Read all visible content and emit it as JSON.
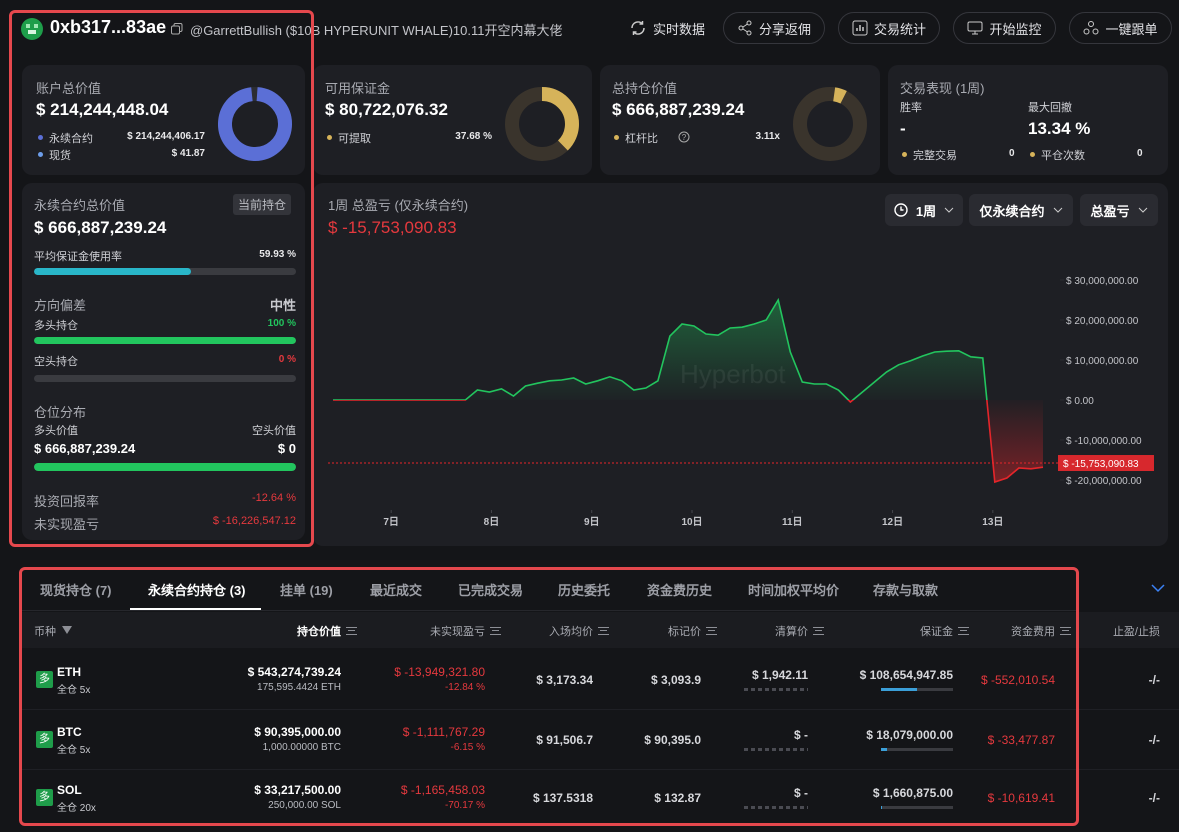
{
  "header": {
    "address": "0xb317...83ae",
    "handle": "@GarrettBullish ($10B HYPERUNIT WHALE)10.11开空内幕大佬",
    "buttons": [
      "实时数据",
      "分享返佣",
      "交易统计",
      "开始监控",
      "一键跟单"
    ]
  },
  "cards": {
    "account": {
      "title": "账户总价值",
      "value": "$ 214,244,448.04",
      "items": [
        {
          "label": "永续合约",
          "value": "$ 214,244,406.17"
        },
        {
          "label": "现货",
          "value": "$ 41.87"
        }
      ]
    },
    "margin": {
      "title": "可用保证金",
      "value": "$ 80,722,076.32",
      "items": [
        {
          "label": "可提取",
          "value": "37.68 %"
        }
      ]
    },
    "position": {
      "title": "总持仓价值",
      "value": "$ 666,887,239.24",
      "items": [
        {
          "label": "杠杆比",
          "value": "3.11x"
        }
      ]
    },
    "performance": {
      "title": "交易表现 (1周)",
      "win_rate_label": "胜率",
      "win_rate": "-",
      "drawdown_label": "最大回撤",
      "drawdown": "13.34 %",
      "items": [
        {
          "label": "完整交易",
          "value": "0"
        },
        {
          "label": "平仓次数",
          "value": "0"
        }
      ]
    }
  },
  "perp_panel": {
    "title": "永续合约总价值",
    "tag": "当前持仓",
    "value": "$ 666,887,239.24",
    "margin_usage_label": "平均保证金使用率",
    "margin_usage": "59.93 %",
    "bias_label": "方向偏差",
    "bias": "中性",
    "long_label": "多头持仓",
    "long_pct": "100 %",
    "short_label": "空头持仓",
    "short_pct": "0 %",
    "distribution_label": "仓位分布",
    "long_value_label": "多头价值",
    "short_value_label": "空头价值",
    "long_value": "$ 666,887,239.24",
    "short_value": "$ 0",
    "roi_label": "投资回报率",
    "roi": "-12.64 %",
    "upnl_label": "未实现盈亏",
    "upnl": "$ -16,226,547.12"
  },
  "chart_data": {
    "type": "area",
    "title": "1周 总盈亏 (仅永续合约)",
    "filters": [
      "1周",
      "仅永续合约",
      "总盈亏"
    ],
    "watermark": "Hyperbot",
    "current": {
      "value": -15753090.83,
      "label": "$ -15,753,090.83"
    },
    "x": [
      6.42,
      6.54,
      6.66,
      6.78,
      6.9,
      7.02,
      7.14,
      7.26,
      7.38,
      7.5,
      7.62,
      7.74,
      7.86,
      7.98,
      8.1,
      8.22,
      8.34,
      8.46,
      8.58,
      8.7,
      8.82,
      8.94,
      9.06,
      9.18,
      9.3,
      9.42,
      9.54,
      9.66,
      9.78,
      9.9,
      10.02,
      10.14,
      10.26,
      10.38,
      10.5,
      10.62,
      10.74,
      10.86,
      10.98,
      11.1,
      11.22,
      11.34,
      11.46,
      11.58,
      11.7,
      11.82,
      11.94,
      12.06,
      12.18,
      12.3,
      12.42,
      12.54,
      12.66,
      12.78,
      12.9,
      13.02,
      13.14,
      13.26,
      13.38,
      13.5
    ],
    "values": [
      0,
      0,
      0,
      0,
      0,
      0,
      0,
      0,
      0,
      0,
      0,
      0,
      2500000,
      2000000,
      2800000,
      1000000,
      3500000,
      4200000,
      4800000,
      5000000,
      5500000,
      4000000,
      4800000,
      5800000,
      4800000,
      2500000,
      3000000,
      4800000,
      16000000,
      19000000,
      18500000,
      16500000,
      16200000,
      18000000,
      18200000,
      19000000,
      20000000,
      25000000,
      12000000,
      4500000,
      4000000,
      4000000,
      2500000,
      -500000,
      2000000,
      4500000,
      7000000,
      8800000,
      9800000,
      11000000,
      12000000,
      12200000,
      12300000,
      10800000,
      10500000,
      -20500000,
      -19500000,
      -17000000,
      -17200000,
      -16800000
    ],
    "xlim": [
      6.42,
      13.57
    ],
    "xticks": [
      {
        "value": 7,
        "label": "7日"
      },
      {
        "value": 8,
        "label": "8日"
      },
      {
        "value": 9,
        "label": "9日"
      },
      {
        "value": 10,
        "label": "10日"
      },
      {
        "value": 11,
        "label": "11日"
      },
      {
        "value": 12,
        "label": "12日"
      },
      {
        "value": 13,
        "label": "13日"
      }
    ],
    "ylim": [
      -27500000,
      35000000
    ],
    "yticks": [
      {
        "value": 30000000,
        "label": "$ 30,000,000.00"
      },
      {
        "value": 20000000,
        "label": "$ 20,000,000.00"
      },
      {
        "value": 10000000,
        "label": "$ 10,000,000.00"
      },
      {
        "value": 0,
        "label": "$ 0.00"
      },
      {
        "value": -10000000,
        "label": "$ -10,000,000.00"
      },
      {
        "value": -20000000,
        "label": "$ -20,000,000.00"
      }
    ],
    "color_up": "#22c55e",
    "color_down": "#e5252a"
  },
  "positions": {
    "tabs": [
      "现货持仓 (7)",
      "永续合约持仓 (3)",
      "挂单 (19)",
      "最近成交",
      "已完成交易",
      "历史委托",
      "资金费历史",
      "时间加权平均价",
      "存款与取款"
    ],
    "active_tab": 1,
    "columns": [
      "币种",
      "持仓价值",
      "未实现盈亏",
      "入场均价",
      "标记价",
      "清算价",
      "保证金",
      "资金费用",
      "止盈/止损"
    ],
    "rows": [
      {
        "side": "多",
        "coin": "ETH",
        "mode": "全仓 5x",
        "value": "$ 543,274,739.24",
        "size": "175,595.4424 ETH",
        "pnl": "$ -13,949,321.80",
        "pnl_pct": "-12.84 %",
        "entry": "$ 3,173.34",
        "mark": "$ 3,093.9",
        "liq": "$ 1,942.11",
        "margin": "$ 108,654,947.85",
        "funding": "$ -552,010.54",
        "tpsl": "-/-"
      },
      {
        "side": "多",
        "coin": "BTC",
        "mode": "全仓 5x",
        "value": "$ 90,395,000.00",
        "size": "1,000.00000 BTC",
        "pnl": "$ -1,111,767.29",
        "pnl_pct": "-6.15 %",
        "entry": "$ 91,506.7",
        "mark": "$ 90,395.0",
        "liq": "$ -",
        "margin": "$ 18,079,000.00",
        "funding": "$ -33,477.87",
        "tpsl": "-/-"
      },
      {
        "side": "多",
        "coin": "SOL",
        "mode": "全仓 20x",
        "value": "$ 33,217,500.00",
        "size": "250,000.00 SOL",
        "pnl": "$ -1,165,458.03",
        "pnl_pct": "-70.17 %",
        "entry": "$ 137.5318",
        "mark": "$ 132.87",
        "liq": "$ -",
        "margin": "$ 1,660,875.00",
        "funding": "$ -10,619.41",
        "tpsl": "-/-"
      }
    ]
  }
}
